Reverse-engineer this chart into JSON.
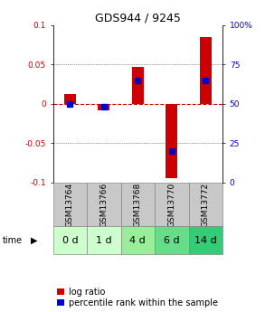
{
  "title": "GDS944 / 9245",
  "samples": [
    "GSM13764",
    "GSM13766",
    "GSM13768",
    "GSM13770",
    "GSM13772"
  ],
  "time_labels": [
    "0 d",
    "1 d",
    "4 d",
    "6 d",
    "14 d"
  ],
  "log_ratios": [
    0.012,
    -0.008,
    0.047,
    -0.095,
    0.085
  ],
  "percentile_ranks": [
    50,
    48,
    65,
    20,
    65
  ],
  "ylim": [
    -0.1,
    0.1
  ],
  "right_ylim": [
    0,
    100
  ],
  "right_yticks": [
    0,
    25,
    50,
    75,
    100
  ],
  "right_yticklabels": [
    "0",
    "25",
    "50",
    "75",
    "100%"
  ],
  "left_yticks": [
    -0.1,
    -0.05,
    0,
    0.05,
    0.1
  ],
  "left_yticklabels": [
    "-0.1",
    "-0.05",
    "0",
    "0.05",
    "0.1"
  ],
  "bar_color": "#cc0000",
  "rank_color": "#0000cc",
  "dotted_color": "#555555",
  "zero_line_color": "#cc0000",
  "sample_bg_color": "#c8c8c8",
  "time_bg_colors": [
    "#ccffcc",
    "#ccffcc",
    "#99ee99",
    "#66dd88",
    "#33cc77"
  ],
  "cell_border_color": "#888888",
  "bar_width": 0.35,
  "rank_marker_size": 4,
  "title_fontsize": 9,
  "tick_fontsize": 6.5,
  "sample_fontsize": 6.5,
  "time_fontsize": 8,
  "legend_fontsize": 7
}
